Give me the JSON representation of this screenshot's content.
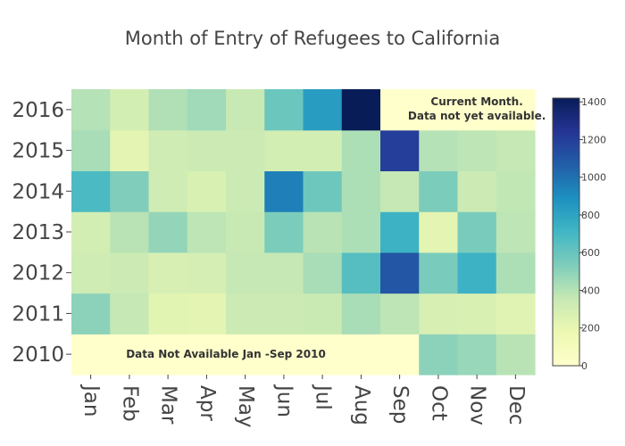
{
  "chart_data": {
    "type": "heatmap",
    "title": "Month of Entry of Refugees to California",
    "xlabel": "",
    "ylabel": "",
    "x": [
      "Jan",
      "Feb",
      "Mar",
      "Apr",
      "May",
      "Jun",
      "Jul",
      "Aug",
      "Sep",
      "Oct",
      "Nov",
      "Dec"
    ],
    "y": [
      "2010",
      "2011",
      "2012",
      "2013",
      "2014",
      "2015",
      "2016"
    ],
    "z": [
      [
        null,
        null,
        null,
        null,
        null,
        null,
        null,
        null,
        null,
        500,
        470,
        390
      ],
      [
        500,
        360,
        230,
        220,
        330,
        330,
        340,
        430,
        380,
        280,
        270,
        240
      ],
      [
        320,
        330,
        280,
        290,
        360,
        360,
        430,
        650,
        1100,
        550,
        730,
        420
      ],
      [
        300,
        390,
        480,
        380,
        350,
        540,
        390,
        420,
        730,
        220,
        550,
        380
      ],
      [
        680,
        530,
        320,
        270,
        330,
        950,
        580,
        420,
        360,
        540,
        330,
        370
      ],
      [
        430,
        220,
        320,
        330,
        330,
        300,
        300,
        420,
        1200,
        400,
        380,
        360
      ],
      [
        400,
        300,
        410,
        450,
        350,
        590,
        830,
        1420,
        null,
        null,
        null,
        null
      ]
    ],
    "zrange": [
      0,
      1420
    ],
    "colorbar": {
      "ticks": [
        "0",
        "200",
        "400",
        "600",
        "800",
        "1000",
        "1200",
        "1400"
      ],
      "tick_values": [
        0,
        200,
        400,
        600,
        800,
        1000,
        1200,
        1400
      ]
    },
    "colorscale": [
      [
        0,
        "#ffffcc"
      ],
      [
        0.125,
        "#edf8b1"
      ],
      [
        0.25,
        "#c7e9b4"
      ],
      [
        0.375,
        "#7fcdbb"
      ],
      [
        0.5,
        "#41b6c4"
      ],
      [
        0.625,
        "#1d91c0"
      ],
      [
        0.75,
        "#225ea8"
      ],
      [
        0.875,
        "#253494"
      ],
      [
        1,
        "#081d58"
      ]
    ],
    "missing_color": "#ffffcc",
    "annotations": [
      {
        "id": "current-month",
        "lines": [
          "Current Month.",
          "Data not yet available."
        ]
      },
      {
        "id": "not-available",
        "lines": [
          "Data Not Available Jan -Sep 2010"
        ]
      }
    ]
  }
}
